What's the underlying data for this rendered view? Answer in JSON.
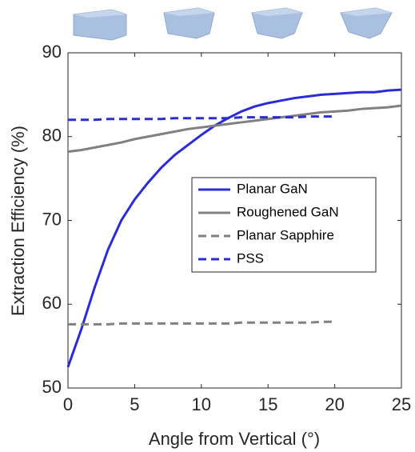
{
  "chart_data": {
    "type": "line",
    "xlabel": "Angle from Vertical (°)",
    "ylabel": "Extraction Efficiency (%)",
    "x": [
      0,
      1,
      2,
      3,
      4,
      5,
      6,
      7,
      8,
      9,
      10,
      11,
      12,
      13,
      14,
      15,
      16,
      17,
      18,
      19,
      20,
      21,
      22,
      23,
      24,
      25
    ],
    "xlim": [
      0,
      25
    ],
    "xticks": [
      0,
      5,
      10,
      15,
      20,
      25
    ],
    "ylim": [
      50,
      90
    ],
    "yticks": [
      50,
      60,
      70,
      80,
      90
    ],
    "legend": "center-right",
    "series": [
      {
        "name": "Planar GaN",
        "color": "#2b2bd8",
        "style": "solid",
        "values": [
          52.5,
          57,
          62,
          66.5,
          70,
          72.5,
          74.5,
          76.3,
          77.8,
          79,
          80.2,
          81.3,
          82.2,
          83,
          83.6,
          84,
          84.3,
          84.6,
          84.8,
          85,
          85.1,
          85.2,
          85.3,
          85.3,
          85.5,
          85.6
        ]
      },
      {
        "name": "Roughened GaN",
        "color": "#808080",
        "style": "solid",
        "values": [
          78.2,
          78.4,
          78.7,
          79,
          79.3,
          79.7,
          80,
          80.3,
          80.6,
          80.9,
          81.1,
          81.3,
          81.5,
          81.7,
          81.9,
          82.1,
          82.3,
          82.5,
          82.7,
          82.9,
          83,
          83.1,
          83.3,
          83.4,
          83.5,
          83.7
        ]
      },
      {
        "name": "Planar Sapphire",
        "color": "#808080",
        "style": "dashed",
        "values": [
          57.6,
          57.6,
          57.6,
          57.6,
          57.7,
          57.7,
          57.7,
          57.7,
          57.7,
          57.7,
          57.7,
          57.7,
          57.7,
          57.8,
          57.8,
          57.8,
          57.8,
          57.8,
          57.8,
          57.9,
          57.9,
          null,
          null,
          null,
          null,
          null
        ]
      },
      {
        "name": "PSS",
        "color": "#2b2bd8",
        "style": "dashed",
        "values": [
          82,
          82,
          82,
          82.1,
          82.1,
          82.1,
          82.1,
          82.1,
          82.2,
          82.2,
          82.2,
          82.2,
          82.2,
          82.3,
          82.3,
          82.3,
          82.3,
          82.3,
          82.4,
          82.4,
          82.4,
          null,
          null,
          null,
          null,
          null
        ]
      }
    ]
  }
}
